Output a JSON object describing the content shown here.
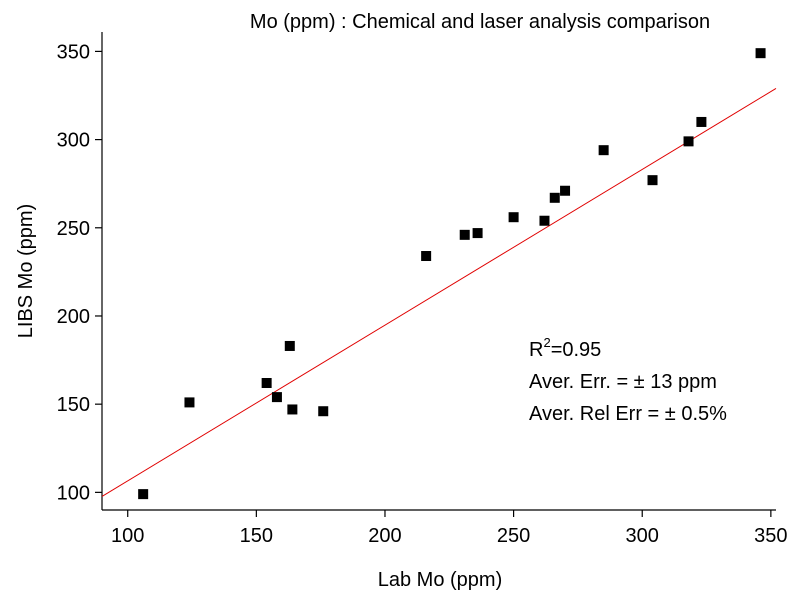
{
  "chart_data": {
    "type": "scatter",
    "title": "Mo (ppm) : Chemical and laser analysis comparison",
    "x_label": "Lab Mo (ppm)",
    "y_label": "LIBS Mo (ppm)",
    "xlim": [
      90,
      352
    ],
    "ylim": [
      90,
      361
    ],
    "xticks": [
      100,
      150,
      200,
      250,
      300,
      350
    ],
    "yticks": [
      100,
      150,
      200,
      250,
      300,
      350
    ],
    "series": [
      {
        "color": "#000000",
        "x": [
          106,
          124,
          154,
          158,
          163,
          164,
          176,
          216,
          231,
          236,
          250,
          262,
          266,
          270,
          285,
          304,
          318,
          323,
          346
        ],
        "values": [
          99,
          151,
          162,
          154,
          183,
          147,
          146,
          234,
          246,
          247,
          256,
          254,
          267,
          271,
          294,
          277,
          299,
          310,
          349
        ]
      }
    ],
    "fit_line": {
      "color": "#e00000",
      "x": [
        90,
        352
      ],
      "values": [
        97.7,
        329
      ]
    },
    "r_squared": {
      "symbol": "R",
      "power": "2",
      "value": "=0.95"
    },
    "annotations": [
      "Aver. Err. = ± 13 ppm",
      "Aver. Rel Err = ± 0.5%"
    ]
  }
}
